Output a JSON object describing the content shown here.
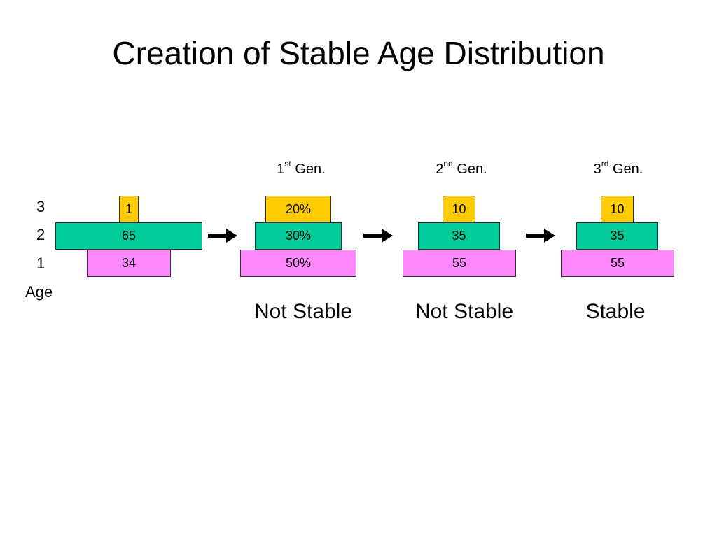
{
  "title": "Creation of Stable Age Distribution",
  "colors": {
    "age1": "#ff88ff",
    "age2": "#00cc99",
    "age3": "#ffcc00",
    "arrow": "#000000",
    "border": "#333333"
  },
  "age_axis": {
    "levels": [
      "3",
      "2",
      "1"
    ],
    "label": "Age"
  },
  "generations": [
    {
      "num": "1",
      "suffix": "st",
      "text": " Gen."
    },
    {
      "num": "2",
      "suffix": "nd",
      "text": " Gen."
    },
    {
      "num": "3",
      "suffix": "rd",
      "text": " Gen."
    }
  ],
  "columns": [
    {
      "age3": "1",
      "age2": "65",
      "age1": "34"
    },
    {
      "age3": "20%",
      "age2": "30%",
      "age1": "50%"
    },
    {
      "age3": "10",
      "age2": "35",
      "age1": "55"
    },
    {
      "age3": "10",
      "age2": "35",
      "age1": "55"
    }
  ],
  "statuses": [
    "Not Stable",
    "Not Stable",
    "Stable"
  ],
  "arrow_icon": "right-arrow-icon"
}
